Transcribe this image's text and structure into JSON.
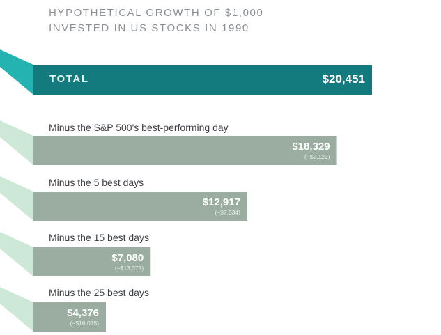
{
  "title_lines": [
    "HYPOTHETICAL GROWTH OF $1,000",
    "INVESTED IN US STOCKS IN 1990"
  ],
  "colors": {
    "total_bar": "#137a7e",
    "total_ribbon": "#25b3b1",
    "scenario_bar": "#9aada0",
    "scenario_ribbon": "#cde8d6",
    "title_text": "#8c9097"
  },
  "chart_data": {
    "type": "bar",
    "orientation": "horizontal",
    "title": "HYPOTHETICAL GROWTH OF $1,000 INVESTED IN US STOCKS IN 1990",
    "categories": [
      "TOTAL",
      "Minus the S&P 500's best-performing day",
      "Minus the 5 best days",
      "Minus the 15 best days",
      "Minus the 25 best days"
    ],
    "values": [
      20451,
      18329,
      12917,
      7080,
      4376
    ],
    "value_labels": [
      "$20,451",
      "$18,329",
      "$12,917",
      "$7,080",
      "$4,376"
    ],
    "difference_labels": [
      "",
      "(−$2,122)",
      "(−$7,534)",
      "(−$13,371)",
      "(−$16,075)"
    ],
    "differences": [
      0,
      -2122,
      -7534,
      -13371,
      -16075
    ],
    "grid": false,
    "legend": "none"
  }
}
